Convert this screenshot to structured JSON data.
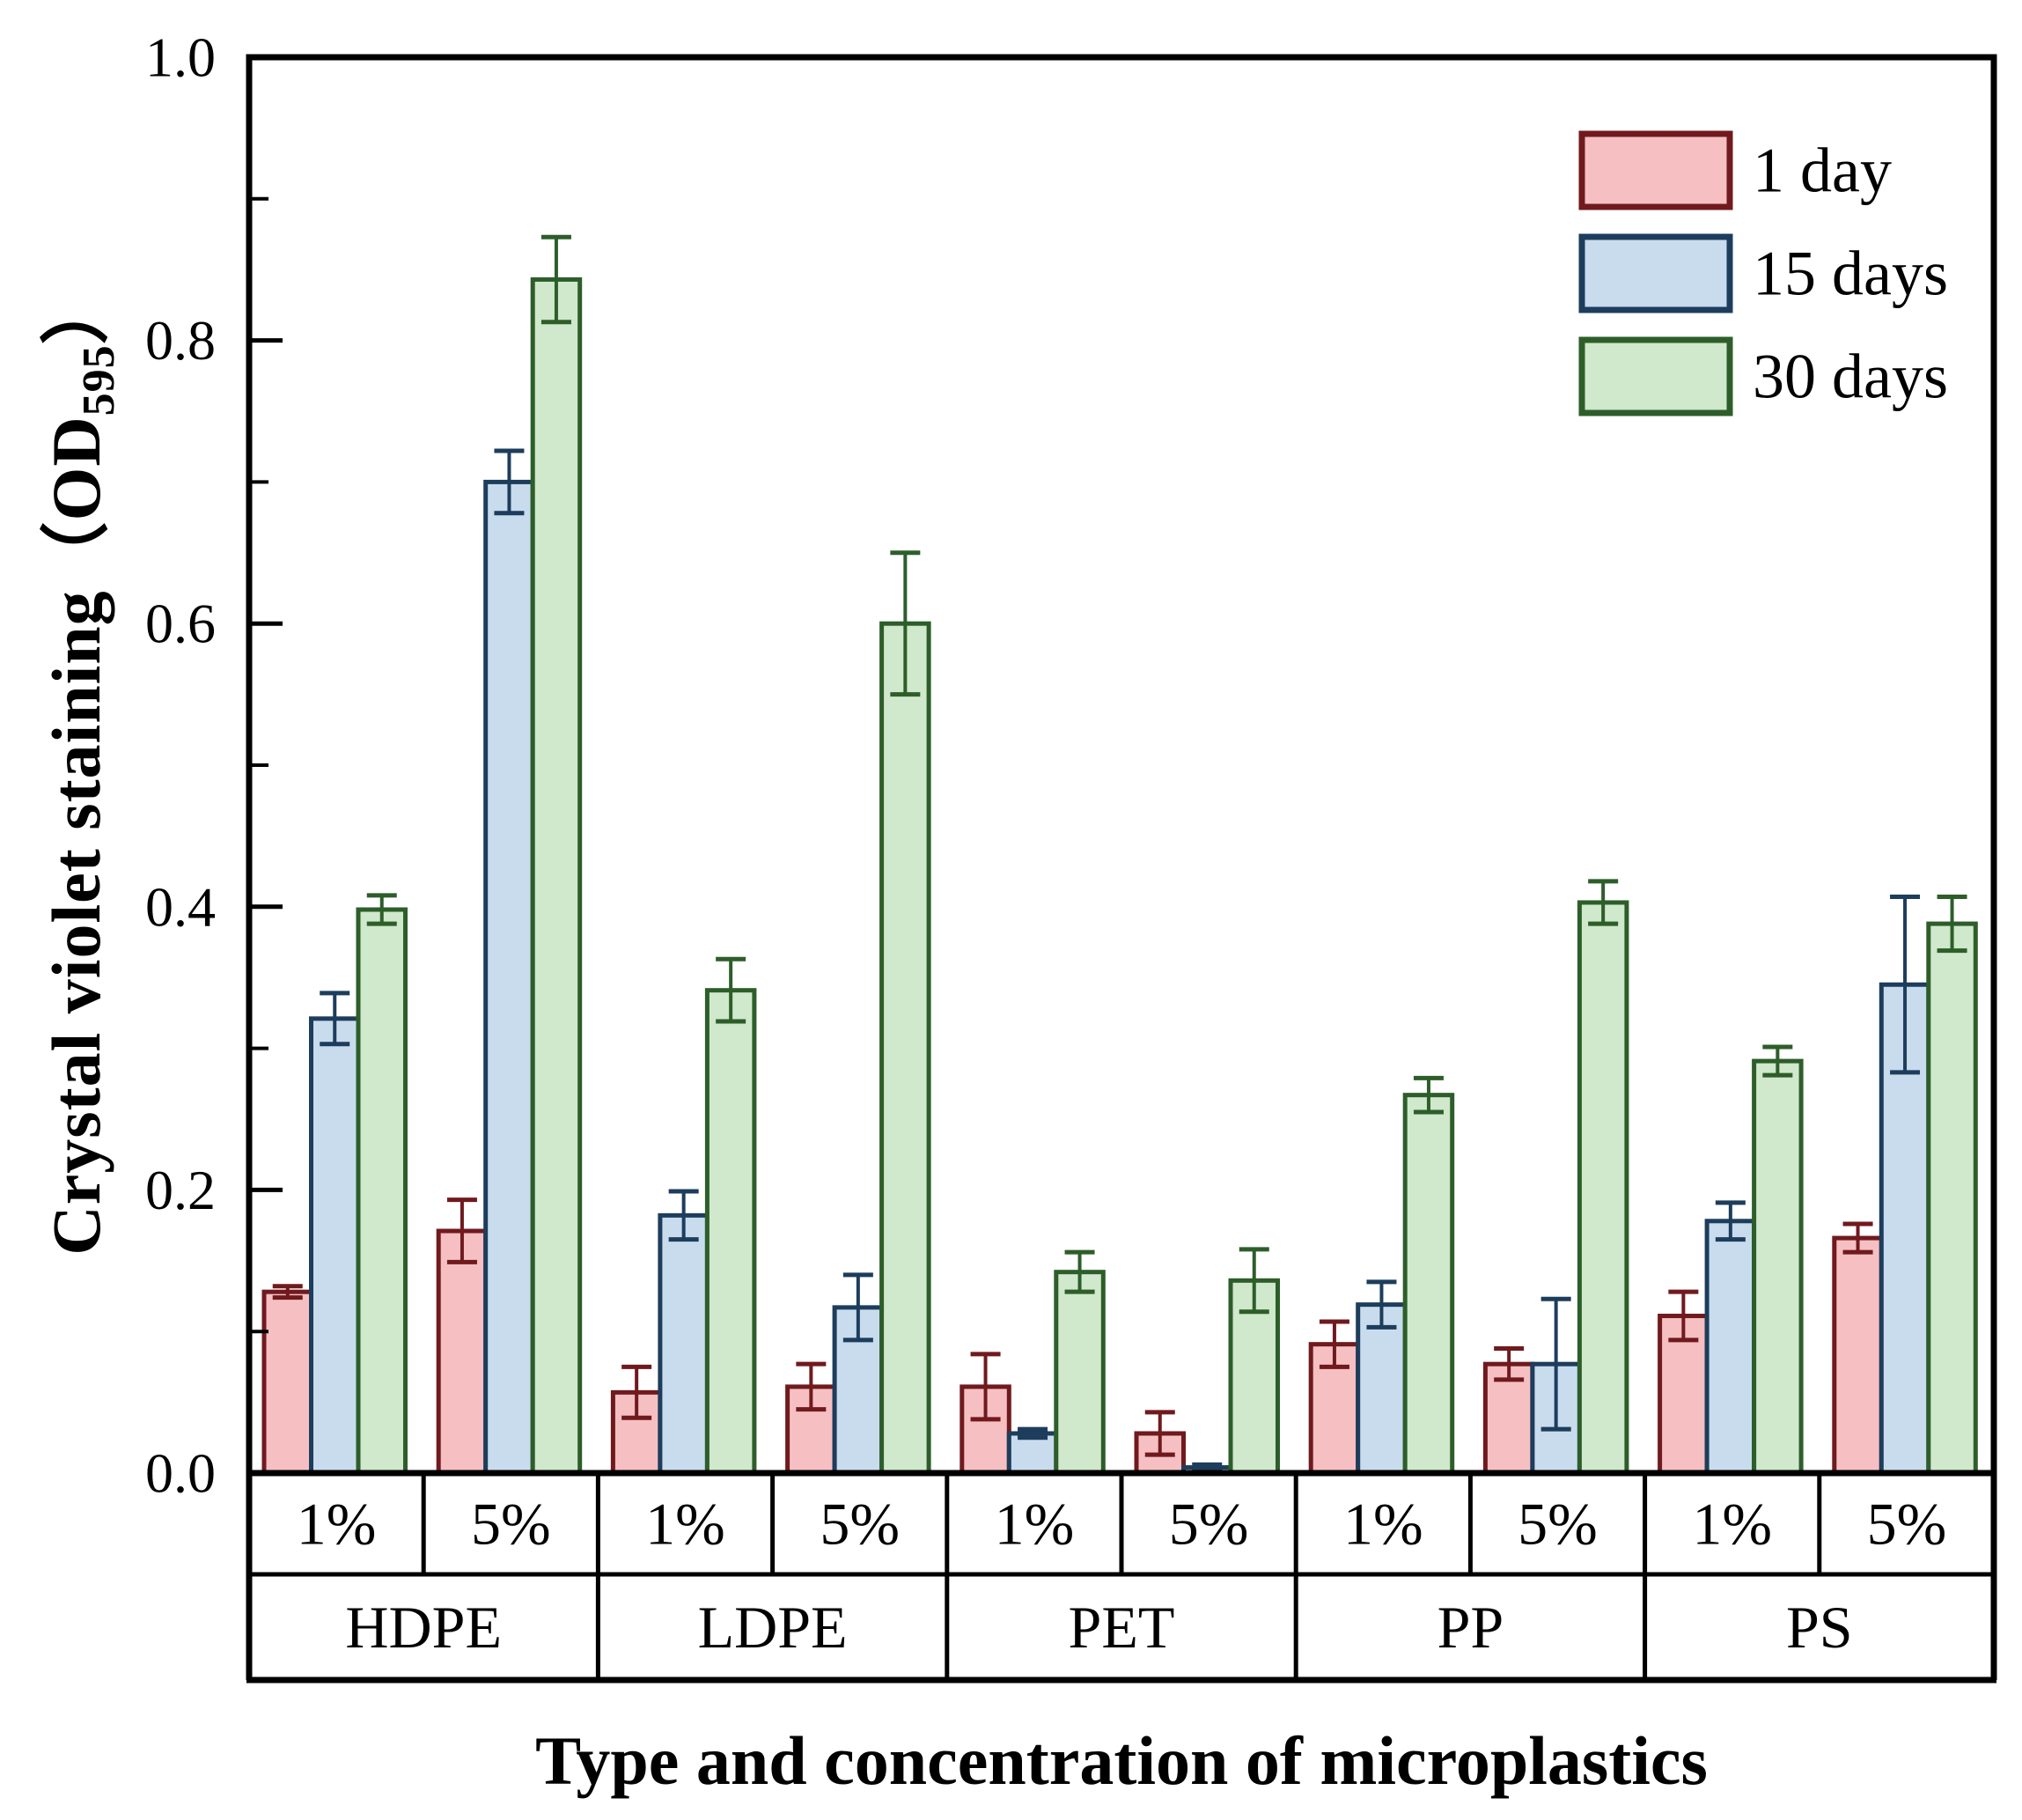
{
  "axis": {
    "y_title_prefix": "Crystal violet staining（OD",
    "y_title_sub": "595",
    "y_title_suffix": "）",
    "x_title": "Type and concentration of microplastics",
    "major_tick_labels": [
      "0.0",
      "0.2",
      "0.4",
      "0.6",
      "0.8",
      "1.0"
    ],
    "minor_tick_values": [
      0.1,
      0.3,
      0.5,
      0.7,
      0.9
    ],
    "color": "#000000"
  },
  "chart_data": {
    "type": "bar",
    "title": "",
    "ylabel": "Crystal violet staining (OD595)",
    "xlabel": "Type and concentration of microplastics",
    "ylim": [
      0,
      1.0
    ],
    "grid": false,
    "legend_position": "top-right",
    "group_labels": [
      "HDPE",
      "LDPE",
      "PET",
      "PP",
      "PS"
    ],
    "concentrations": [
      "1%",
      "5%",
      "1%",
      "5%",
      "1%",
      "5%",
      "1%",
      "5%",
      "1%",
      "5%"
    ],
    "categories": [
      "HDPE 1%",
      "HDPE 5%",
      "LDPE 1%",
      "LDPE 5%",
      "PET 1%",
      "PET 5%",
      "PP 1%",
      "PP 5%",
      "PS 1%",
      "PS 5%"
    ],
    "series": [
      {
        "name": "1 day",
        "fill": "#f6c0c3",
        "border": "#701a1e",
        "values": [
          0.128,
          0.171,
          0.057,
          0.061,
          0.061,
          0.028,
          0.091,
          0.077,
          0.111,
          0.166
        ],
        "errors": [
          0.004,
          0.022,
          0.018,
          0.016,
          0.023,
          0.015,
          0.016,
          0.011,
          0.017,
          0.01
        ]
      },
      {
        "name": "15 days",
        "fill": "#c9dcee",
        "border": "#1d3d5c",
        "values": [
          0.321,
          0.7,
          0.182,
          0.117,
          0.028,
          0.004,
          0.119,
          0.077,
          0.178,
          0.345
        ],
        "errors": [
          0.018,
          0.022,
          0.017,
          0.023,
          0.003,
          0.002,
          0.016,
          0.046,
          0.013,
          0.062
        ]
      },
      {
        "name": "30 days",
        "fill": "#d0e8cb",
        "border": "#2d5e2a",
        "values": [
          0.398,
          0.843,
          0.341,
          0.6,
          0.142,
          0.136,
          0.267,
          0.403,
          0.291,
          0.388
        ],
        "errors": [
          0.01,
          0.03,
          0.022,
          0.05,
          0.014,
          0.022,
          0.012,
          0.015,
          0.01,
          0.019
        ]
      }
    ]
  }
}
